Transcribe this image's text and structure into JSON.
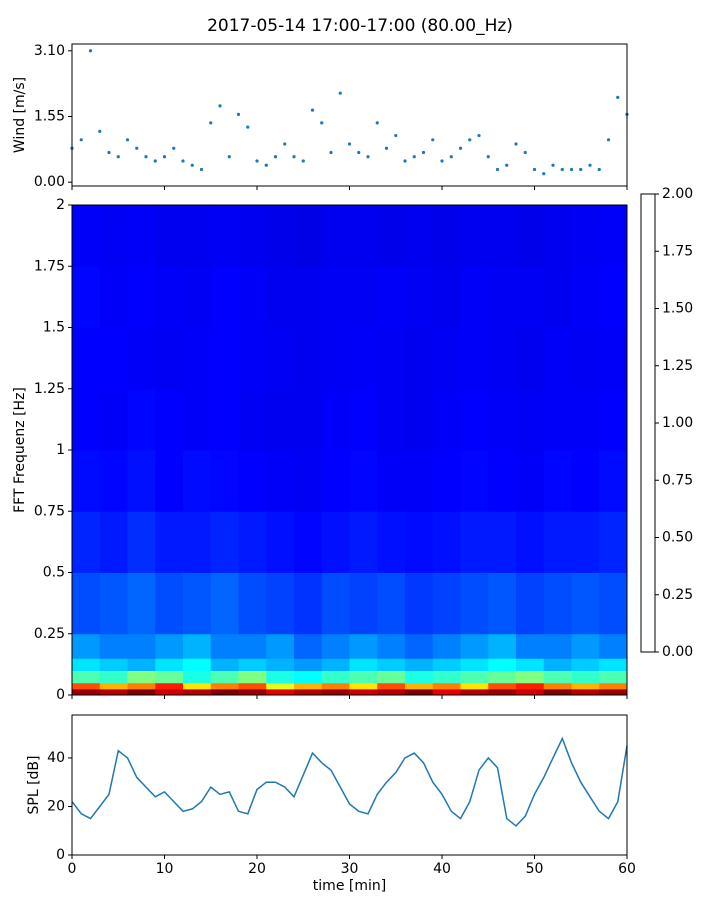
{
  "title": "2017-05-14 17:00-17:00 (80.00_Hz)",
  "chart_data": [
    {
      "type": "scatter",
      "y_label": "Wind [m/s]",
      "color": "#1f77b4",
      "x": [
        0,
        1,
        2,
        3,
        4,
        5,
        6,
        7,
        8,
        9,
        10,
        11,
        12,
        13,
        14,
        15,
        16,
        17,
        18,
        19,
        20,
        21,
        22,
        23,
        24,
        25,
        26,
        27,
        28,
        29,
        30,
        31,
        32,
        33,
        34,
        35,
        36,
        37,
        38,
        39,
        40,
        41,
        42,
        43,
        44,
        45,
        46,
        47,
        48,
        49,
        50,
        51,
        52,
        53,
        54,
        55,
        56,
        57,
        58,
        59,
        60
      ],
      "values": [
        0.8,
        1.0,
        3.1,
        1.2,
        0.7,
        0.6,
        1.0,
        0.8,
        0.6,
        0.5,
        0.6,
        0.8,
        0.5,
        0.4,
        0.3,
        1.4,
        1.8,
        0.6,
        1.6,
        1.3,
        0.5,
        0.4,
        0.6,
        0.9,
        0.6,
        0.5,
        1.7,
        1.4,
        0.7,
        2.1,
        0.9,
        0.7,
        0.6,
        1.4,
        0.8,
        1.1,
        0.5,
        0.6,
        0.7,
        1.0,
        0.5,
        0.6,
        0.8,
        1.0,
        1.1,
        0.6,
        0.3,
        0.4,
        0.9,
        0.7,
        0.3,
        0.2,
        0.4,
        0.3,
        0.3,
        0.3,
        0.4,
        0.3,
        1.0,
        2.0,
        1.6
      ],
      "xlim": [
        0,
        60
      ],
      "ylim": [
        -0.09,
        3.26
      ],
      "yticks": [
        {
          "value": 0,
          "label": "0.00"
        },
        {
          "value": 1.55,
          "label": "1.55"
        },
        {
          "value": 3.1,
          "label": "3.10"
        }
      ]
    },
    {
      "type": "heatmap",
      "y_label": "FFT Frequenz [Hz]",
      "colormap": "jet",
      "x_edges": [
        0,
        3,
        6,
        9,
        12,
        15,
        18,
        21,
        24,
        27,
        30,
        33,
        36,
        39,
        42,
        45,
        48,
        51,
        54,
        57,
        60
      ],
      "y_edges": [
        0,
        0.025,
        0.05,
        0.1,
        0.15,
        0.25,
        0.5,
        0.75,
        1,
        1.25,
        1.5,
        1.75,
        2
      ],
      "values": [
        [
          1.95,
          1.9,
          2,
          1.85,
          1.9,
          2,
          1.95,
          1.8,
          1.9,
          1.95,
          1.85,
          1.9,
          2,
          1.8,
          1.9,
          1.95,
          1.85,
          2,
          1.9,
          1.95
        ],
        [
          1.6,
          1.4,
          1.5,
          1.7,
          1.3,
          1.5,
          1.6,
          1.2,
          1.4,
          1.5,
          1.3,
          1.6,
          1.4,
          1.5,
          1.3,
          1.6,
          1.7,
          1.5,
          1.4,
          1.5
        ],
        [
          0.9,
          0.85,
          1.0,
          0.95,
          0.8,
          0.9,
          1.0,
          0.8,
          0.75,
          0.85,
          0.9,
          0.95,
          0.8,
          0.85,
          0.9,
          0.95,
          1.0,
          0.9,
          0.85,
          0.9
        ],
        [
          0.7,
          0.65,
          0.6,
          0.7,
          0.75,
          0.6,
          0.65,
          0.6,
          0.55,
          0.6,
          0.7,
          0.65,
          0.6,
          0.65,
          0.7,
          0.75,
          0.7,
          0.6,
          0.65,
          0.7
        ],
        [
          0.55,
          0.5,
          0.5,
          0.55,
          0.6,
          0.5,
          0.5,
          0.55,
          0.45,
          0.5,
          0.55,
          0.5,
          0.45,
          0.5,
          0.55,
          0.6,
          0.5,
          0.5,
          0.55,
          0.5
        ],
        [
          0.4,
          0.42,
          0.45,
          0.4,
          0.42,
          0.45,
          0.4,
          0.38,
          0.35,
          0.4,
          0.38,
          0.4,
          0.36,
          0.38,
          0.4,
          0.42,
          0.38,
          0.4,
          0.42,
          0.4
        ],
        [
          0.32,
          0.3,
          0.34,
          0.3,
          0.3,
          0.32,
          0.3,
          0.28,
          0.26,
          0.28,
          0.3,
          0.28,
          0.27,
          0.28,
          0.3,
          0.3,
          0.28,
          0.3,
          0.3,
          0.32
        ],
        [
          0.27,
          0.26,
          0.28,
          0.25,
          0.27,
          0.26,
          0.25,
          0.24,
          0.23,
          0.25,
          0.26,
          0.24,
          0.24,
          0.25,
          0.26,
          0.25,
          0.24,
          0.26,
          0.25,
          0.27
        ],
        [
          0.25,
          0.24,
          0.26,
          0.25,
          0.24,
          0.25,
          0.23,
          0.22,
          0.22,
          0.24,
          0.25,
          0.23,
          0.22,
          0.24,
          0.25,
          0.24,
          0.23,
          0.24,
          0.24,
          0.25
        ],
        [
          0.25,
          0.25,
          0.24,
          0.23,
          0.24,
          0.25,
          0.24,
          0.23,
          0.22,
          0.23,
          0.24,
          0.23,
          0.22,
          0.23,
          0.24,
          0.23,
          0.22,
          0.24,
          0.23,
          0.24
        ],
        [
          0.26,
          0.24,
          0.25,
          0.24,
          0.23,
          0.25,
          0.24,
          0.22,
          0.22,
          0.23,
          0.23,
          0.24,
          0.23,
          0.22,
          0.24,
          0.23,
          0.23,
          0.22,
          0.24,
          0.25
        ],
        [
          0.24,
          0.23,
          0.24,
          0.22,
          0.22,
          0.23,
          0.22,
          0.21,
          0.2,
          0.22,
          0.22,
          0.21,
          0.22,
          0.21,
          0.22,
          0.22,
          0.21,
          0.22,
          0.23,
          0.24
        ]
      ],
      "ylim": [
        0,
        2
      ],
      "yticks": [
        0,
        0.25,
        0.5,
        0.75,
        1,
        1.25,
        1.5,
        1.75,
        2
      ],
      "clim": [
        0,
        2
      ],
      "cticks": [
        {
          "value": 0,
          "label": "0.00"
        },
        {
          "value": 0.25,
          "label": "0.25"
        },
        {
          "value": 0.5,
          "label": "0.50"
        },
        {
          "value": 0.75,
          "label": "0.75"
        },
        {
          "value": 1,
          "label": "1.00"
        },
        {
          "value": 1.25,
          "label": "1.25"
        },
        {
          "value": 1.5,
          "label": "1.50"
        },
        {
          "value": 1.75,
          "label": "1.75"
        },
        {
          "value": 2,
          "label": "2.00"
        }
      ]
    },
    {
      "type": "line",
      "x_label": "time [min]",
      "y_label": "SPL [dB]",
      "color": "#1f77b4",
      "x": [
        0,
        1,
        2,
        3,
        4,
        5,
        6,
        7,
        8,
        9,
        10,
        11,
        12,
        13,
        14,
        15,
        16,
        17,
        18,
        19,
        20,
        21,
        22,
        23,
        24,
        25,
        26,
        27,
        28,
        29,
        30,
        31,
        32,
        33,
        34,
        35,
        36,
        37,
        38,
        39,
        40,
        41,
        42,
        43,
        44,
        45,
        46,
        47,
        48,
        49,
        50,
        51,
        52,
        53,
        54,
        55,
        56,
        57,
        58,
        59,
        60
      ],
      "values": [
        22,
        17,
        15,
        20,
        25,
        43,
        40,
        32,
        28,
        24,
        26,
        22,
        18,
        19,
        22,
        28,
        25,
        26,
        18,
        17,
        27,
        30,
        30,
        28,
        24,
        33,
        42,
        38,
        35,
        28,
        21,
        18,
        17,
        25,
        30,
        34,
        40,
        42,
        38,
        30,
        25,
        18,
        15,
        22,
        35,
        40,
        36,
        15,
        12,
        16,
        25,
        32,
        40,
        48,
        38,
        30,
        24,
        18,
        15,
        22,
        45
      ],
      "xlim": [
        0,
        60
      ],
      "xticks": [
        0,
        10,
        20,
        30,
        40,
        50,
        60
      ],
      "ylim": [
        0,
        57.7
      ],
      "yticks": [
        0,
        20,
        40
      ]
    }
  ]
}
